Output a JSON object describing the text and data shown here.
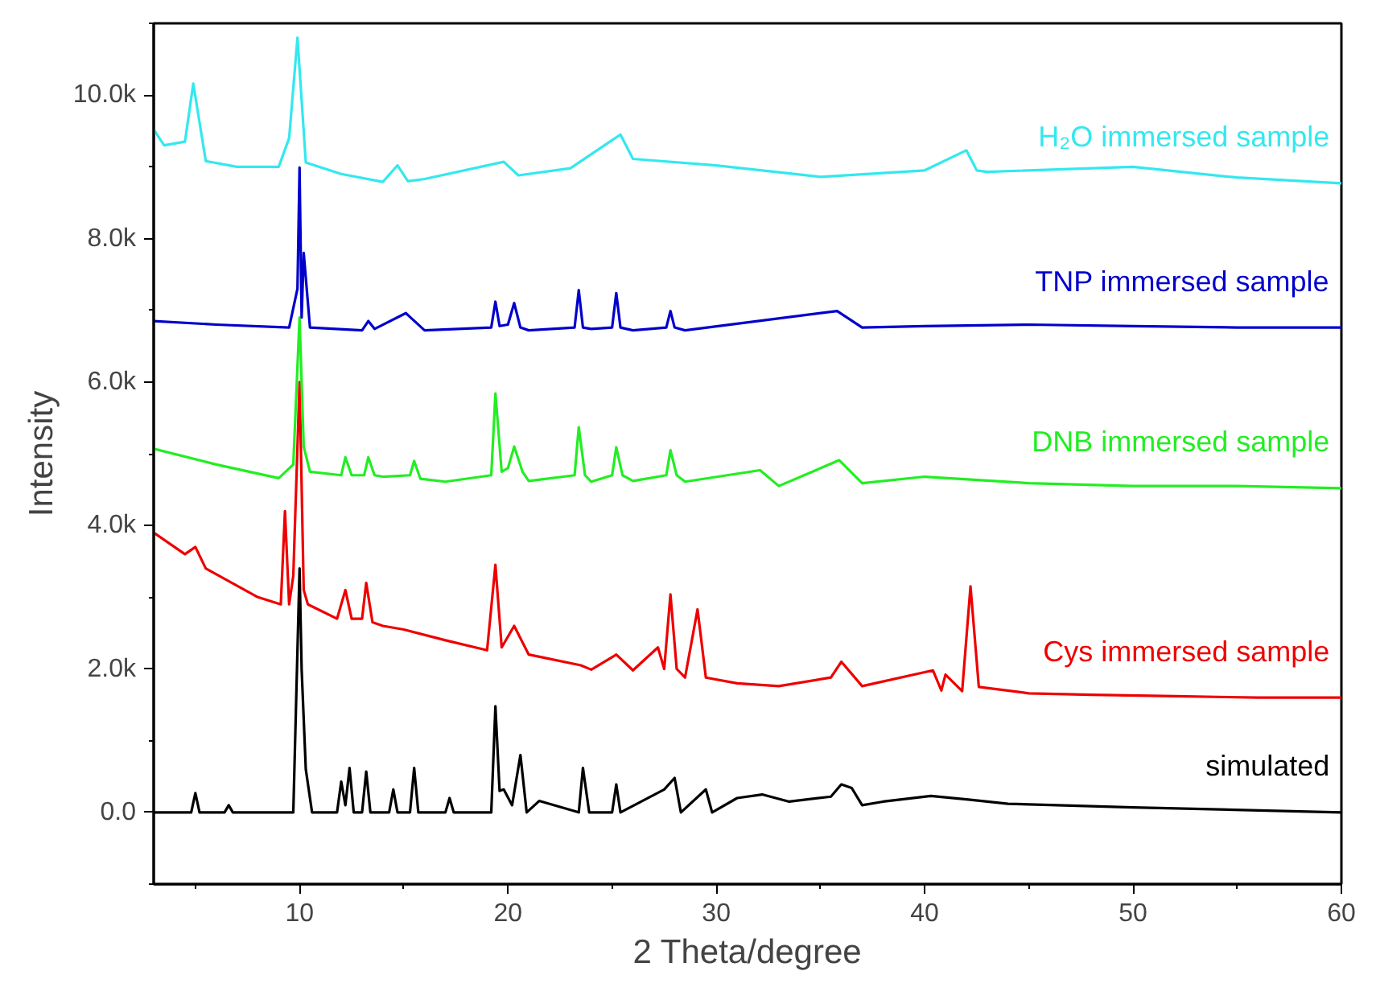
{
  "chart_data": {
    "type": "line",
    "xlabel": "2 Theta/degree",
    "ylabel": "Intensity",
    "xlim": [
      3,
      60
    ],
    "ylim": [
      -1000,
      11000
    ],
    "xticks": [
      10,
      20,
      30,
      40,
      50,
      60
    ],
    "yticks": [
      {
        "value": 0,
        "label": "0.0"
      },
      {
        "value": 2000,
        "label": "2.0k"
      },
      {
        "value": 4000,
        "label": "4.0k"
      },
      {
        "value": 6000,
        "label": "6.0k"
      },
      {
        "value": 8000,
        "label": "8.0k"
      },
      {
        "value": 10000,
        "label": "10.0k"
      }
    ],
    "grid": false,
    "marker": "none",
    "line_style": "solid",
    "series": [
      {
        "name": "simulated",
        "color": "#000000",
        "x": [
          3,
          4.8,
          5.0,
          5.2,
          6.4,
          6.6,
          6.8,
          9.7,
          10.0,
          10.1,
          10.3,
          10.6,
          11.8,
          12.0,
          12.2,
          12.4,
          12.6,
          13.0,
          13.2,
          13.4,
          14.3,
          14.5,
          14.7,
          15.3,
          15.5,
          15.7,
          17.0,
          17.2,
          17.4,
          19.2,
          19.4,
          19.6,
          19.8,
          20.2,
          20.6,
          20.9,
          21.5,
          23.4,
          23.6,
          23.9,
          25.0,
          25.2,
          25.4,
          27.5,
          28.0,
          28.3,
          29.5,
          29.8,
          31.0,
          32.2,
          33.5,
          35.5,
          36.0,
          36.5,
          37,
          38,
          40.3,
          42.1,
          44,
          50,
          60
        ],
        "values": [
          0,
          0,
          270,
          0,
          0,
          100,
          0,
          0,
          3400,
          2000,
          600,
          0,
          0,
          430,
          100,
          620,
          0,
          0,
          570,
          0,
          0,
          320,
          0,
          0,
          620,
          0,
          0,
          200,
          0,
          0,
          1480,
          300,
          320,
          100,
          800,
          0,
          160,
          0,
          620,
          0,
          0,
          390,
          0,
          320,
          480,
          0,
          320,
          0,
          200,
          250,
          150,
          220,
          390,
          340,
          100,
          150,
          230,
          180,
          120,
          70,
          0
        ]
      },
      {
        "name": "Cys immersed sample",
        "color": "#ee0000",
        "x": [
          3,
          4.5,
          5.0,
          5.5,
          8,
          9.1,
          9.3,
          9.5,
          9.7,
          10.0,
          10.2,
          10.4,
          11.8,
          12.2,
          12.5,
          13.0,
          13.2,
          13.5,
          14,
          15,
          17,
          19,
          19.4,
          19.7,
          20.3,
          21,
          23.5,
          24,
          25.2,
          26,
          27.2,
          27.5,
          27.8,
          28.1,
          28.5,
          29.1,
          29.5,
          31,
          33,
          35.5,
          36,
          37,
          40.4,
          40.8,
          41,
          41.8,
          42.2,
          42.6,
          45,
          48,
          52,
          56,
          60
        ],
        "values": [
          3900,
          3600,
          3700,
          3400,
          3000,
          2900,
          4200,
          2900,
          3300,
          6000,
          3100,
          2900,
          2700,
          3100,
          2700,
          2700,
          3200,
          2650,
          2600,
          2550,
          2400,
          2260,
          3450,
          2300,
          2600,
          2200,
          2050,
          1990,
          2200,
          1980,
          2300,
          2000,
          3040,
          2000,
          1880,
          2830,
          1880,
          1800,
          1760,
          1880,
          2100,
          1760,
          1980,
          1700,
          1920,
          1690,
          3150,
          1750,
          1660,
          1640,
          1620,
          1600,
          1600
        ]
      },
      {
        "name": "DNB immersed sample",
        "color": "#22ee22",
        "x": [
          3,
          6,
          9,
          9.7,
          10.0,
          10.2,
          10.5,
          12.0,
          12.2,
          12.5,
          13.1,
          13.3,
          13.6,
          14,
          15.3,
          15.5,
          15.8,
          17,
          19.2,
          19.4,
          19.7,
          20.0,
          20.3,
          20.7,
          21,
          23.2,
          23.4,
          23.7,
          24,
          25.0,
          25.2,
          25.5,
          26,
          27.6,
          27.8,
          28.1,
          28.5,
          32.1,
          33,
          35.9,
          37,
          40,
          45,
          50,
          55,
          60
        ],
        "values": [
          5070,
          4850,
          4660,
          4850,
          6900,
          5100,
          4750,
          4700,
          4950,
          4700,
          4700,
          4950,
          4700,
          4680,
          4700,
          4900,
          4650,
          4610,
          4700,
          5840,
          4750,
          4800,
          5100,
          4750,
          4620,
          4700,
          5370,
          4700,
          4610,
          4700,
          5090,
          4700,
          4620,
          4700,
          5050,
          4700,
          4610,
          4770,
          4550,
          4910,
          4590,
          4680,
          4590,
          4550,
          4550,
          4520
        ]
      },
      {
        "name": "TNP immersed sample",
        "color": "#0000cc",
        "x": [
          3,
          6,
          9.5,
          9.9,
          10.0,
          10.1,
          10.2,
          10.5,
          13,
          13.3,
          13.6,
          15.1,
          16,
          19.2,
          19.4,
          19.6,
          20.0,
          20.3,
          20.6,
          21,
          23.2,
          23.4,
          23.6,
          24,
          25.0,
          25.2,
          25.4,
          26,
          27.6,
          27.8,
          28.0,
          28.5,
          35.8,
          37,
          40,
          45,
          50,
          55,
          60
        ],
        "values": [
          6850,
          6800,
          6760,
          7300,
          8990,
          6900,
          7800,
          6760,
          6720,
          6850,
          6740,
          6960,
          6720,
          6760,
          7120,
          6780,
          6800,
          7100,
          6760,
          6720,
          6760,
          7280,
          6760,
          6740,
          6760,
          7240,
          6760,
          6720,
          6760,
          6990,
          6760,
          6720,
          6990,
          6760,
          6780,
          6800,
          6780,
          6760,
          6760
        ]
      },
      {
        "name": "H₂O immersed sample",
        "color": "#33e8ef",
        "x": [
          3,
          3.5,
          4.5,
          4.9,
          5.5,
          7,
          9,
          9.5,
          9.9,
          10.3,
          12,
          14,
          14.7,
          15.2,
          16,
          19.8,
          20.5,
          23,
          25.4,
          26,
          30,
          35,
          40,
          42.0,
          42.5,
          43,
          50,
          55,
          60
        ],
        "values": [
          9520,
          9300,
          9350,
          10160,
          9080,
          9000,
          9000,
          9400,
          10800,
          9060,
          8900,
          8790,
          9020,
          8800,
          8830,
          9070,
          8880,
          8980,
          9450,
          9110,
          9020,
          8860,
          8950,
          9230,
          8950,
          8930,
          9000,
          8850,
          8770
        ]
      }
    ]
  }
}
